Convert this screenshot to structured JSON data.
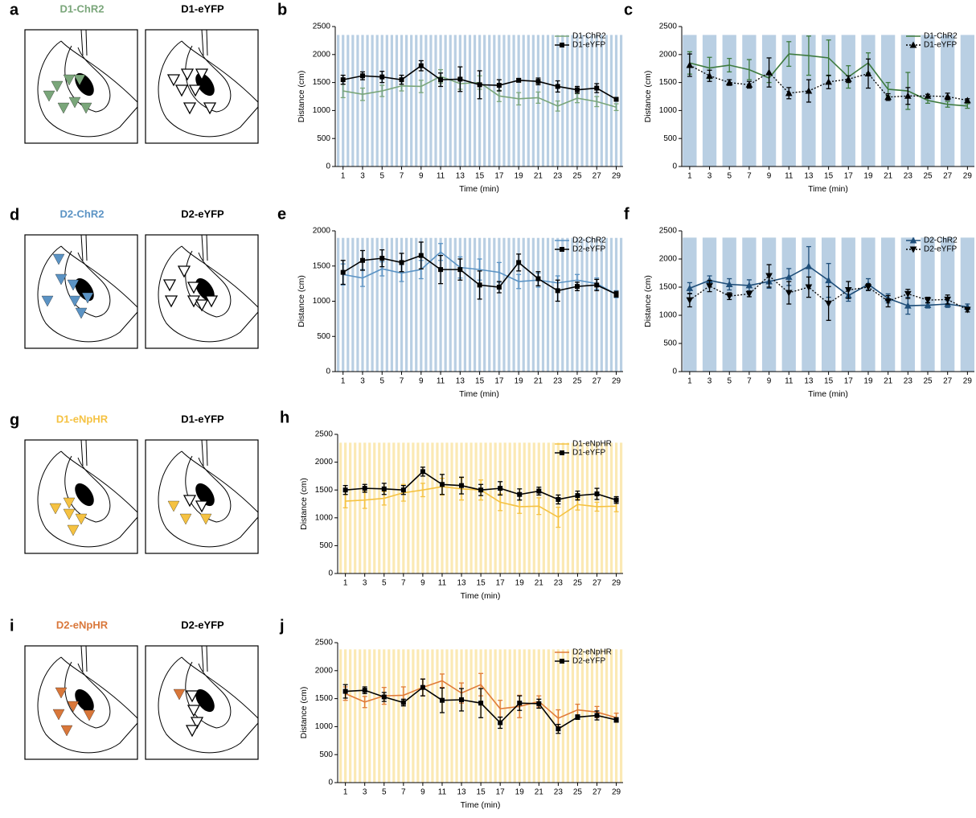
{
  "diagrams": [
    {
      "label": "a",
      "left": {
        "title": "D1-ChR2",
        "color": "#7aa67a"
      },
      "right": {
        "title": "D1-eYFP"
      }
    },
    {
      "label": "d",
      "left": {
        "title": "D2-ChR2",
        "color": "#5b93c4"
      },
      "right": {
        "title": "D2-eYFP"
      }
    },
    {
      "label": "g",
      "left": {
        "title": "D1-eNpHR",
        "color": "#f5c242"
      },
      "right": {
        "title": "D1-eYFP"
      }
    },
    {
      "label": "i",
      "left": {
        "title": "D2-eNpHR",
        "color": "#d9773a"
      },
      "right": {
        "title": "D2-eYFP"
      }
    }
  ],
  "chart_data": [
    {
      "type": "line",
      "label": "b",
      "xlabel": "Time (min)",
      "ylabel": "Distance (cm)",
      "xlim": [
        0.2,
        29.7
      ],
      "ylim": [
        0,
        2500
      ],
      "xticks": [
        1,
        3,
        5,
        7,
        9,
        11,
        13,
        15,
        17,
        19,
        21,
        23,
        25,
        27,
        29
      ],
      "yticks": [
        0,
        500,
        1000,
        1500,
        2000,
        2500
      ],
      "legend": "upper right",
      "stim": {
        "color": "#b9cfe3",
        "top": 2350,
        "style": "narrow"
      },
      "x": [
        1,
        3,
        5,
        7,
        9,
        11,
        13,
        15,
        17,
        19,
        21,
        23,
        25,
        27,
        29
      ],
      "series": [
        {
          "name": "D1-ChR2",
          "color": "#7aa67a",
          "dash": "solid",
          "marker": "none",
          "values": [
            1350,
            1290,
            1350,
            1440,
            1430,
            1610,
            1480,
            1500,
            1260,
            1210,
            1230,
            1080,
            1220,
            1160,
            1060
          ],
          "errors": [
            120,
            110,
            100,
            90,
            110,
            120,
            100,
            120,
            100,
            110,
            100,
            90,
            80,
            90,
            60
          ]
        },
        {
          "name": "D1-eYFP",
          "color": "#000000",
          "dash": "solid",
          "marker": "square",
          "values": [
            1550,
            1620,
            1600,
            1550,
            1800,
            1550,
            1560,
            1460,
            1450,
            1540,
            1520,
            1430,
            1370,
            1400,
            1200
          ],
          "errors": [
            80,
            70,
            100,
            80,
            90,
            120,
            220,
            250,
            100,
            30,
            60,
            100,
            60,
            80,
            30
          ]
        }
      ]
    },
    {
      "type": "line",
      "label": "c",
      "xlabel": "Time (min)",
      "ylabel": "Distance (cm)",
      "xlim": [
        0.2,
        29.7
      ],
      "ylim": [
        0,
        2500
      ],
      "xticks": [
        1,
        3,
        5,
        7,
        9,
        11,
        13,
        15,
        17,
        19,
        21,
        23,
        25,
        27,
        29
      ],
      "yticks": [
        0,
        500,
        1000,
        1500,
        2000,
        2500
      ],
      "legend": "upper right",
      "stim": {
        "color": "#b9cfe3",
        "top": 2350,
        "style": "wide"
      },
      "x": [
        1,
        3,
        5,
        7,
        9,
        11,
        13,
        15,
        17,
        19,
        21,
        23,
        25,
        27,
        29
      ],
      "series": [
        {
          "name": "D1-ChR2",
          "color": "#3d7a3d",
          "dash": "solid",
          "marker": "none",
          "values": [
            1850,
            1760,
            1810,
            1730,
            1580,
            2010,
            1980,
            1940,
            1600,
            1850,
            1380,
            1350,
            1180,
            1110,
            1080
          ],
          "errors": [
            200,
            190,
            120,
            180,
            80,
            220,
            350,
            320,
            200,
            180,
            120,
            330,
            50,
            50,
            40
          ]
        },
        {
          "name": "D1-eYFP",
          "color": "#000000",
          "dash": "dotted",
          "marker": "triangle",
          "values": [
            1810,
            1620,
            1500,
            1460,
            1680,
            1310,
            1350,
            1510,
            1560,
            1660,
            1240,
            1260,
            1260,
            1250,
            1180
          ],
          "errors": [
            200,
            100,
            50,
            60,
            260,
            100,
            200,
            120,
            60,
            260,
            60,
            150,
            30,
            60,
            30
          ]
        }
      ]
    },
    {
      "type": "line",
      "label": "e",
      "xlabel": "Time (min)",
      "ylabel": "Distance (cm)",
      "xlim": [
        0.2,
        29.7
      ],
      "ylim": [
        0,
        2000
      ],
      "xticks": [
        1,
        3,
        5,
        7,
        9,
        11,
        13,
        15,
        17,
        19,
        21,
        23,
        25,
        27,
        29
      ],
      "yticks": [
        0,
        500,
        1000,
        1500,
        2000
      ],
      "legend": "upper right",
      "stim": {
        "color": "#b9cfe3",
        "top": 1900,
        "style": "narrow"
      },
      "x": [
        1,
        3,
        5,
        7,
        9,
        11,
        13,
        15,
        17,
        19,
        21,
        23,
        25,
        27,
        29
      ],
      "series": [
        {
          "name": "D2-ChR2",
          "color": "#5b93c4",
          "dash": "solid",
          "marker": "none",
          "values": [
            1380,
            1330,
            1460,
            1400,
            1450,
            1700,
            1480,
            1450,
            1410,
            1280,
            1300,
            1260,
            1300,
            1250,
            1100
          ],
          "errors": [
            150,
            120,
            100,
            120,
            130,
            120,
            150,
            150,
            140,
            100,
            100,
            100,
            80,
            80,
            50
          ]
        },
        {
          "name": "D2-eYFP",
          "color": "#000000",
          "dash": "solid",
          "marker": "square",
          "values": [
            1410,
            1580,
            1610,
            1550,
            1650,
            1450,
            1450,
            1230,
            1200,
            1550,
            1320,
            1150,
            1210,
            1230,
            1100
          ],
          "errors": [
            170,
            140,
            120,
            130,
            190,
            200,
            150,
            200,
            80,
            120,
            100,
            150,
            60,
            80,
            40
          ]
        }
      ]
    },
    {
      "type": "line",
      "label": "f",
      "xlabel": "Time (min)",
      "ylabel": "Distance (cm)",
      "xlim": [
        0.2,
        29.7
      ],
      "ylim": [
        0,
        2500
      ],
      "xticks": [
        1,
        3,
        5,
        7,
        9,
        11,
        13,
        15,
        17,
        19,
        21,
        23,
        25,
        27,
        29
      ],
      "yticks": [
        0,
        500,
        1000,
        1500,
        2000,
        2500
      ],
      "legend": "upper right",
      "stim": {
        "color": "#b9cfe3",
        "top": 2380,
        "style": "wide"
      },
      "x": [
        1,
        3,
        5,
        7,
        9,
        11,
        13,
        15,
        17,
        19,
        21,
        23,
        25,
        27,
        29
      ],
      "series": [
        {
          "name": "D2-ChR2",
          "color": "#1f4e79",
          "dash": "solid",
          "marker": "triangle",
          "values": [
            1480,
            1620,
            1550,
            1530,
            1600,
            1680,
            1870,
            1620,
            1350,
            1550,
            1300,
            1170,
            1180,
            1200,
            1150
          ],
          "errors": [
            100,
            80,
            100,
            100,
            120,
            150,
            350,
            300,
            100,
            100,
            80,
            150,
            50,
            60,
            50
          ]
        },
        {
          "name": "D2-eYFP",
          "color": "#000000",
          "dash": "dotted",
          "marker": "triangle-down",
          "values": [
            1270,
            1520,
            1340,
            1380,
            1700,
            1400,
            1500,
            1210,
            1450,
            1500,
            1250,
            1380,
            1270,
            1280,
            1100
          ],
          "errors": [
            120,
            100,
            60,
            50,
            200,
            200,
            180,
            300,
            150,
            60,
            100,
            80,
            50,
            80,
            40
          ]
        }
      ]
    },
    {
      "type": "line",
      "label": "h",
      "xlabel": "Time (min)",
      "ylabel": "Distance (cm)",
      "xlim": [
        0.2,
        29.7
      ],
      "ylim": [
        0,
        2500
      ],
      "xticks": [
        1,
        3,
        5,
        7,
        9,
        11,
        13,
        15,
        17,
        19,
        21,
        23,
        25,
        27,
        29
      ],
      "yticks": [
        0,
        500,
        1000,
        1500,
        2000,
        2500
      ],
      "legend": "upper right",
      "stim": {
        "color": "#fbe9b4",
        "top": 2350,
        "style": "narrow"
      },
      "x": [
        1,
        3,
        5,
        7,
        9,
        11,
        13,
        15,
        17,
        19,
        21,
        23,
        25,
        27,
        29
      ],
      "series": [
        {
          "name": "D1-eNpHR",
          "color": "#f5c242",
          "dash": "solid",
          "marker": "none",
          "values": [
            1300,
            1320,
            1350,
            1450,
            1500,
            1560,
            1520,
            1500,
            1280,
            1200,
            1210,
            1010,
            1240,
            1200,
            1210
          ],
          "errors": [
            120,
            150,
            120,
            150,
            120,
            150,
            200,
            180,
            150,
            120,
            150,
            180,
            100,
            80,
            100
          ]
        },
        {
          "name": "D1-eYFP",
          "color": "#000000",
          "dash": "solid",
          "marker": "square",
          "values": [
            1500,
            1530,
            1520,
            1500,
            1830,
            1600,
            1580,
            1500,
            1530,
            1420,
            1480,
            1330,
            1400,
            1430,
            1320
          ],
          "errors": [
            80,
            70,
            100,
            80,
            80,
            180,
            150,
            100,
            120,
            100,
            70,
            80,
            80,
            100,
            60
          ]
        }
      ]
    },
    {
      "type": "line",
      "label": "j",
      "xlabel": "Time (min)",
      "ylabel": "Distance (cm)",
      "xlim": [
        0.2,
        29.7
      ],
      "ylim": [
        0,
        2500
      ],
      "xticks": [
        1,
        3,
        5,
        7,
        9,
        11,
        13,
        15,
        17,
        19,
        21,
        23,
        25,
        27,
        29
      ],
      "yticks": [
        0,
        500,
        1000,
        1500,
        2000,
        2500
      ],
      "legend": "upper right",
      "stim": {
        "color": "#fbe9b4",
        "top": 2380,
        "style": "narrow"
      },
      "x": [
        1,
        3,
        5,
        7,
        9,
        11,
        13,
        15,
        17,
        19,
        21,
        23,
        25,
        27,
        29
      ],
      "series": [
        {
          "name": "D2-eNpHR",
          "color": "#e07b39",
          "dash": "solid",
          "marker": "none",
          "values": [
            1590,
            1440,
            1550,
            1560,
            1700,
            1820,
            1600,
            1750,
            1320,
            1360,
            1450,
            1150,
            1300,
            1260,
            1160
          ],
          "errors": [
            120,
            100,
            150,
            150,
            150,
            120,
            180,
            200,
            150,
            200,
            100,
            150,
            100,
            100,
            80
          ]
        },
        {
          "name": "D2-eYFP",
          "color": "#000000",
          "dash": "solid",
          "marker": "square",
          "values": [
            1630,
            1650,
            1530,
            1430,
            1700,
            1470,
            1480,
            1420,
            1070,
            1420,
            1410,
            960,
            1170,
            1200,
            1120
          ],
          "errors": [
            120,
            60,
            80,
            60,
            150,
            220,
            200,
            260,
            100,
            130,
            80,
            80,
            40,
            80,
            40
          ]
        }
      ]
    }
  ]
}
